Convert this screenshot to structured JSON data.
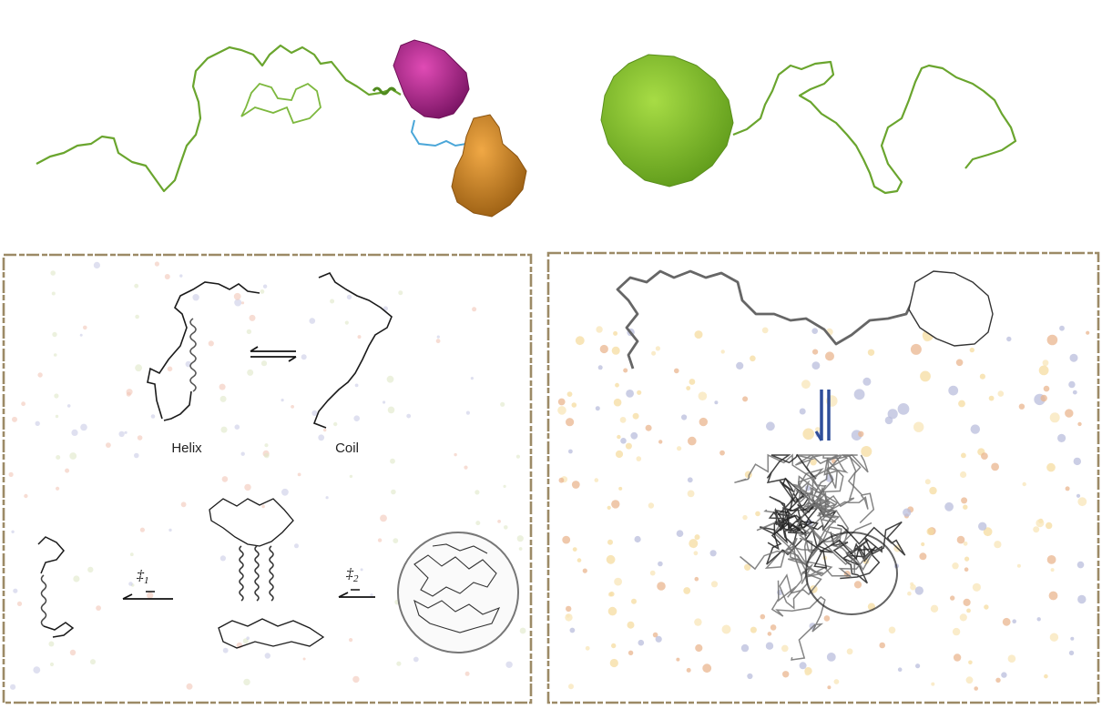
{
  "panels": {
    "left": {
      "states": [
        "Helix",
        "Coil"
      ],
      "transition_states": [
        {
          "symbol": "‡",
          "subscript": "1"
        },
        {
          "symbol": "‡",
          "subscript": "2"
        }
      ]
    }
  },
  "colors": {
    "linker_green": "#6aa52e",
    "domain_magenta": "#b01e86",
    "domain_orange": "#c98423",
    "domain_lime": "#7fbf2a",
    "linker_blue": "#4aa6d8",
    "frame_tan": "#9c8a66",
    "arrow_blue": "#2f4e9a",
    "chain_black": "#1a1a1a",
    "chain_grey": "#666666"
  }
}
